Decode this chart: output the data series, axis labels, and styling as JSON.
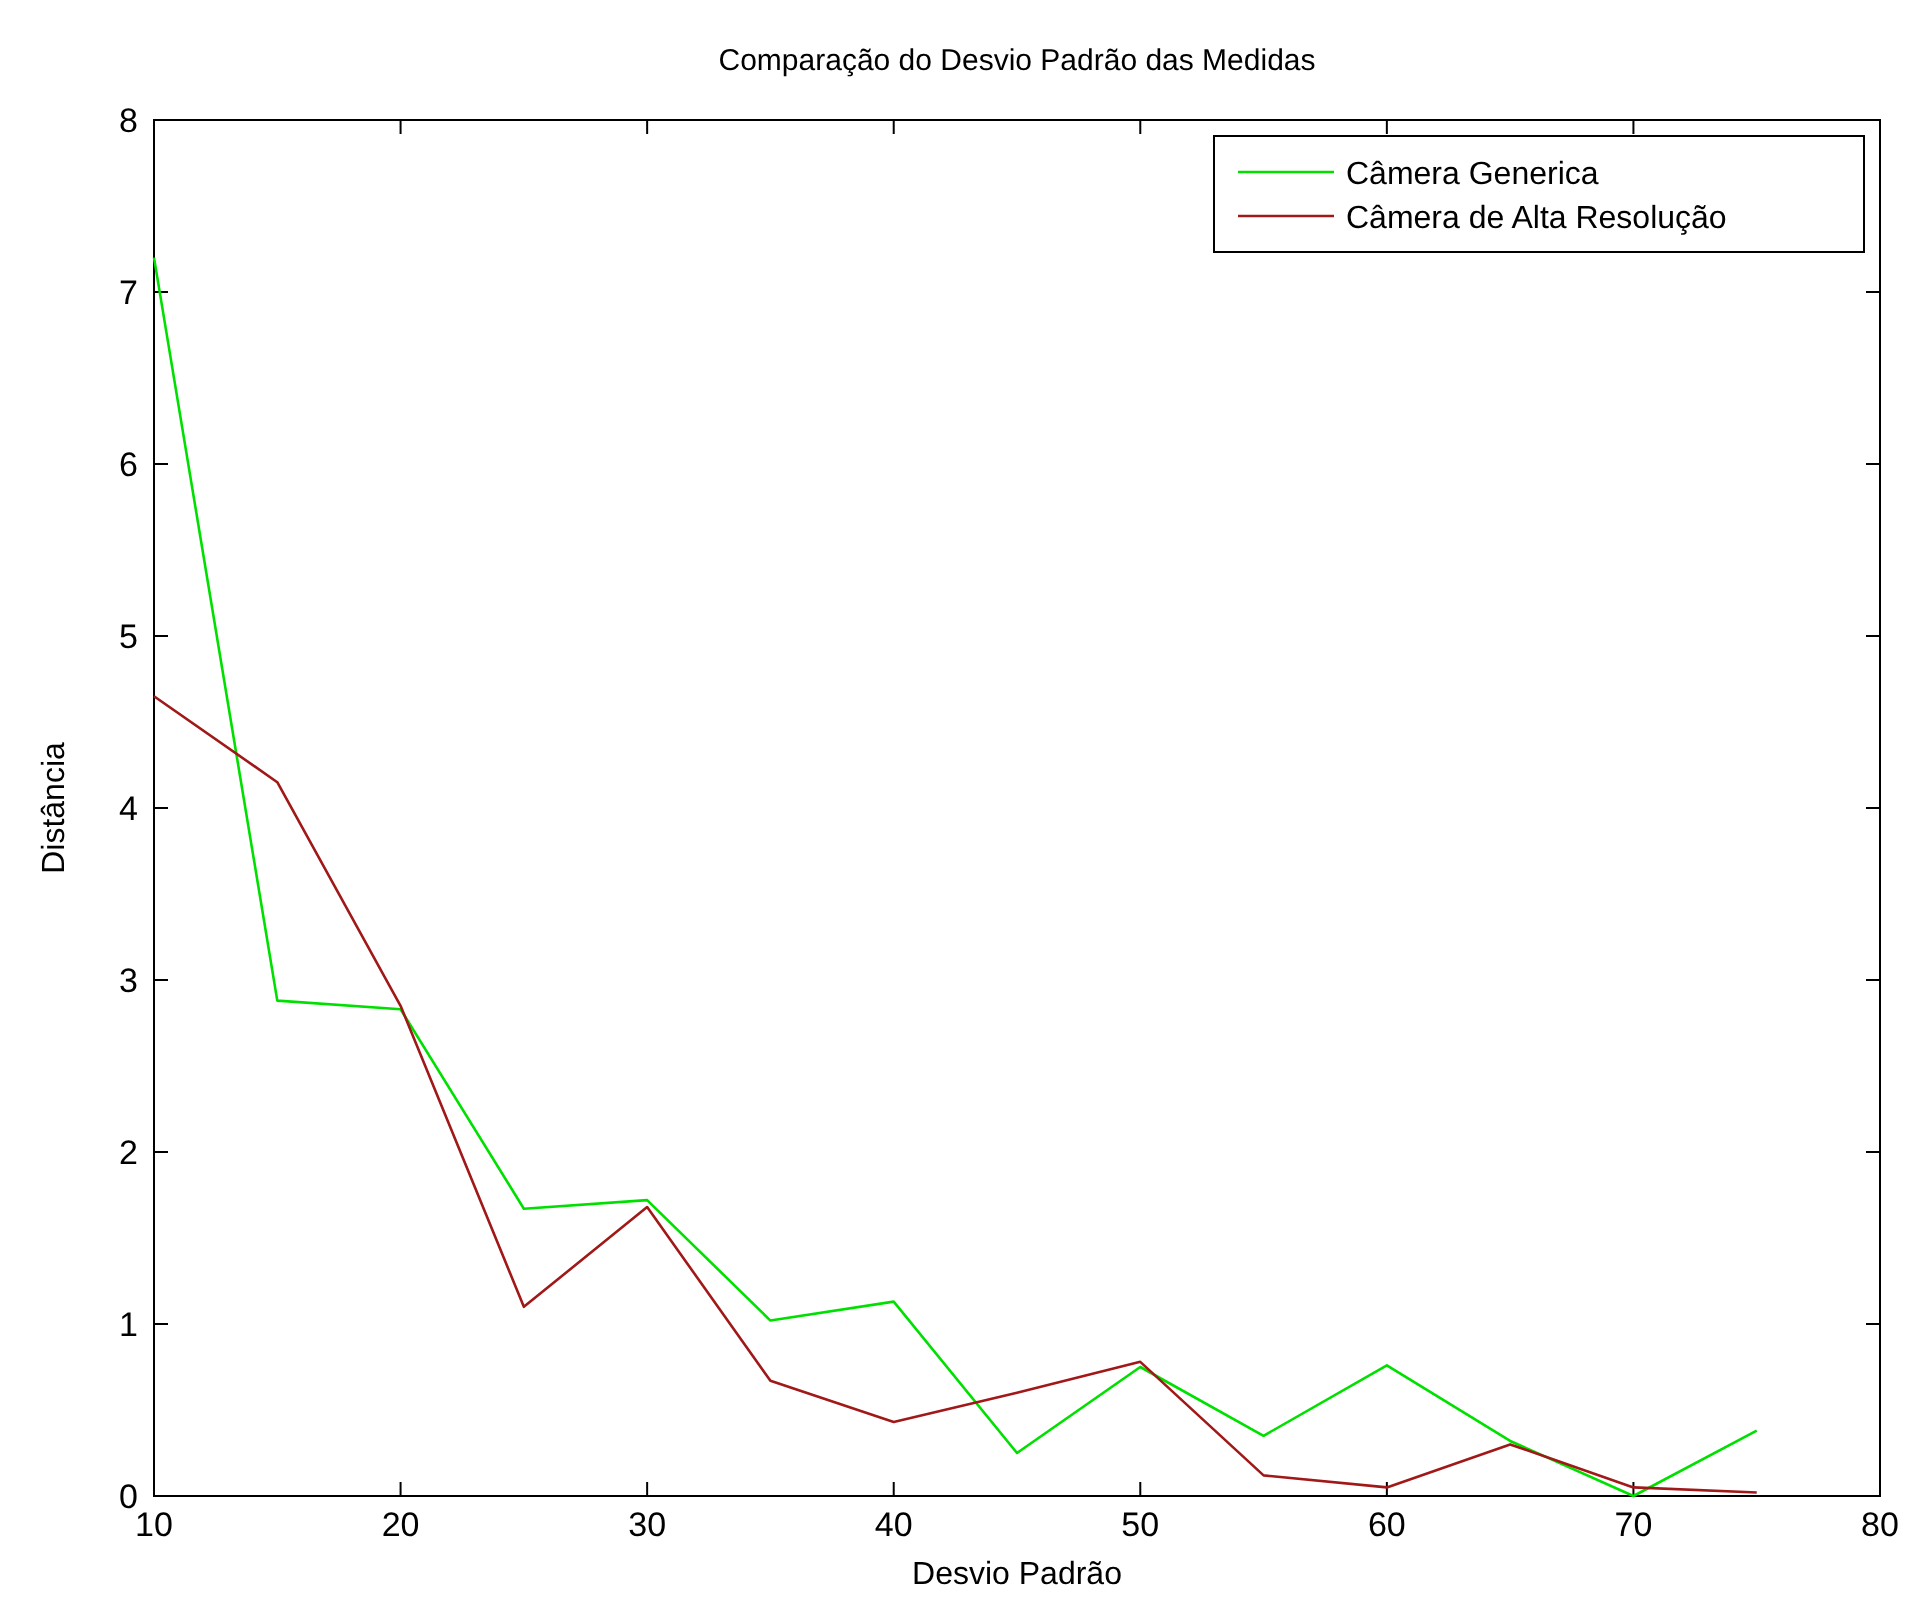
{
  "chart_data": {
    "type": "line",
    "title": "Comparação do Desvio Padrão das Medidas",
    "xlabel": "Desvio Padrão",
    "ylabel": "Distância",
    "x": [
      10,
      15,
      20,
      25,
      30,
      35,
      40,
      45,
      50,
      55,
      60,
      65,
      70,
      75
    ],
    "series": [
      {
        "name": "Câmera Generica",
        "color": "#00e000",
        "values": [
          7.2,
          2.88,
          2.83,
          1.67,
          1.72,
          1.02,
          1.13,
          0.25,
          0.75,
          0.35,
          0.76,
          0.32,
          0.0,
          0.38
        ]
      },
      {
        "name": "Câmera de Alta Resolução",
        "color": "#a01818",
        "values": [
          4.65,
          4.15,
          2.85,
          1.1,
          1.68,
          0.67,
          0.43,
          0.6,
          0.78,
          0.12,
          0.05,
          0.3,
          0.05,
          0.02
        ]
      }
    ],
    "xlim": [
      10,
      80
    ],
    "xticks": [
      10,
      20,
      30,
      40,
      50,
      60,
      70,
      80
    ],
    "ylim": [
      0,
      8
    ],
    "yticks": [
      0,
      1,
      2,
      3,
      4,
      5,
      6,
      7,
      8
    ],
    "grid": false,
    "legend": "top right",
    "marker": "none",
    "line_style": "solid"
  }
}
